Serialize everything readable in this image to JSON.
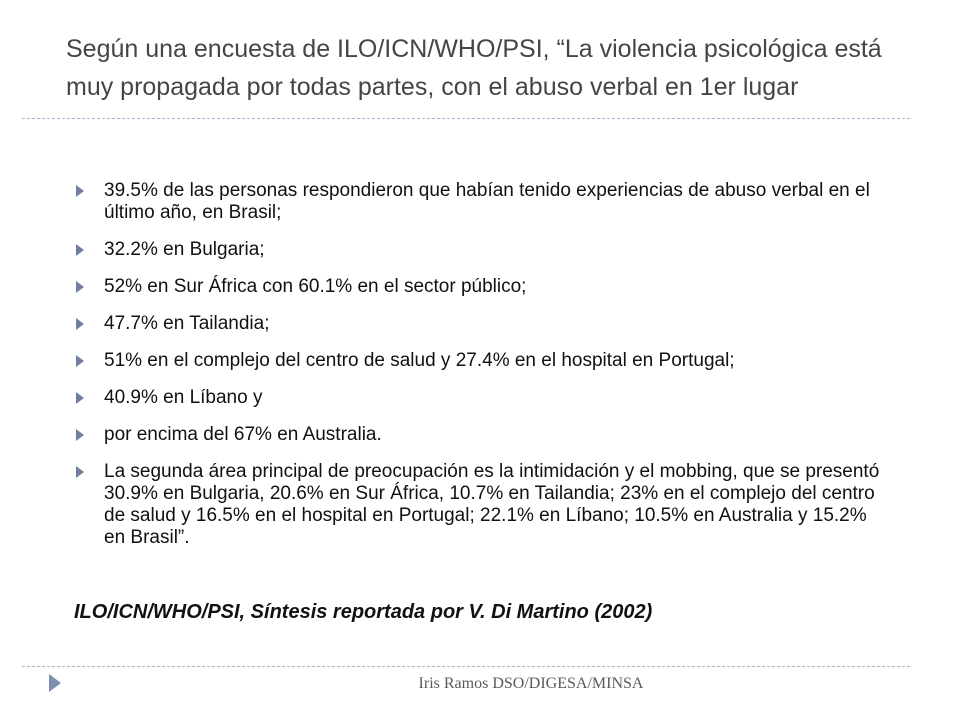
{
  "title": "Según una encuesta de ILO/ICN/WHO/PSI, “La violencia psicológica está muy propagada por todas partes, con el abuso verbal en 1er lugar",
  "bullets": [
    "39.5% de las personas respondieron que habían tenido experiencias de abuso verbal en el último año, en Brasil;",
    "32.2% en Bulgaria;",
    "52% en Sur África con 60.1% en el sector público;",
    "47.7% en Tailandia;",
    "51% en el complejo del centro de salud y 27.4% en el hospital en Portugal;",
    "40.9% en Líbano y",
    "por encima del 67% en Australia.",
    "La segunda área principal de preocupación es la intimidación y el mobbing, que se presentó 30.9% en Bulgaria, 20.6% en Sur África, 10.7% en Tailandia; 23% en el complejo del centro de salud y 16.5% en el hospital en Portugal; 22.1% en Líbano; 10.5% en Australia y 15.2% en Brasil”."
  ],
  "citation": "ILO/ICN/WHO/PSI, Síntesis reportada por V. Di Martino (2002)",
  "footer": "Iris Ramos DSO/DIGESA/MINSA",
  "colors": {
    "title": "#454545",
    "bullet_marker": "#6f7f9f",
    "rule": "#a7b7cf"
  },
  "icons": {
    "bullet": "triangle-right-icon",
    "footer": "triangle-right-icon"
  }
}
